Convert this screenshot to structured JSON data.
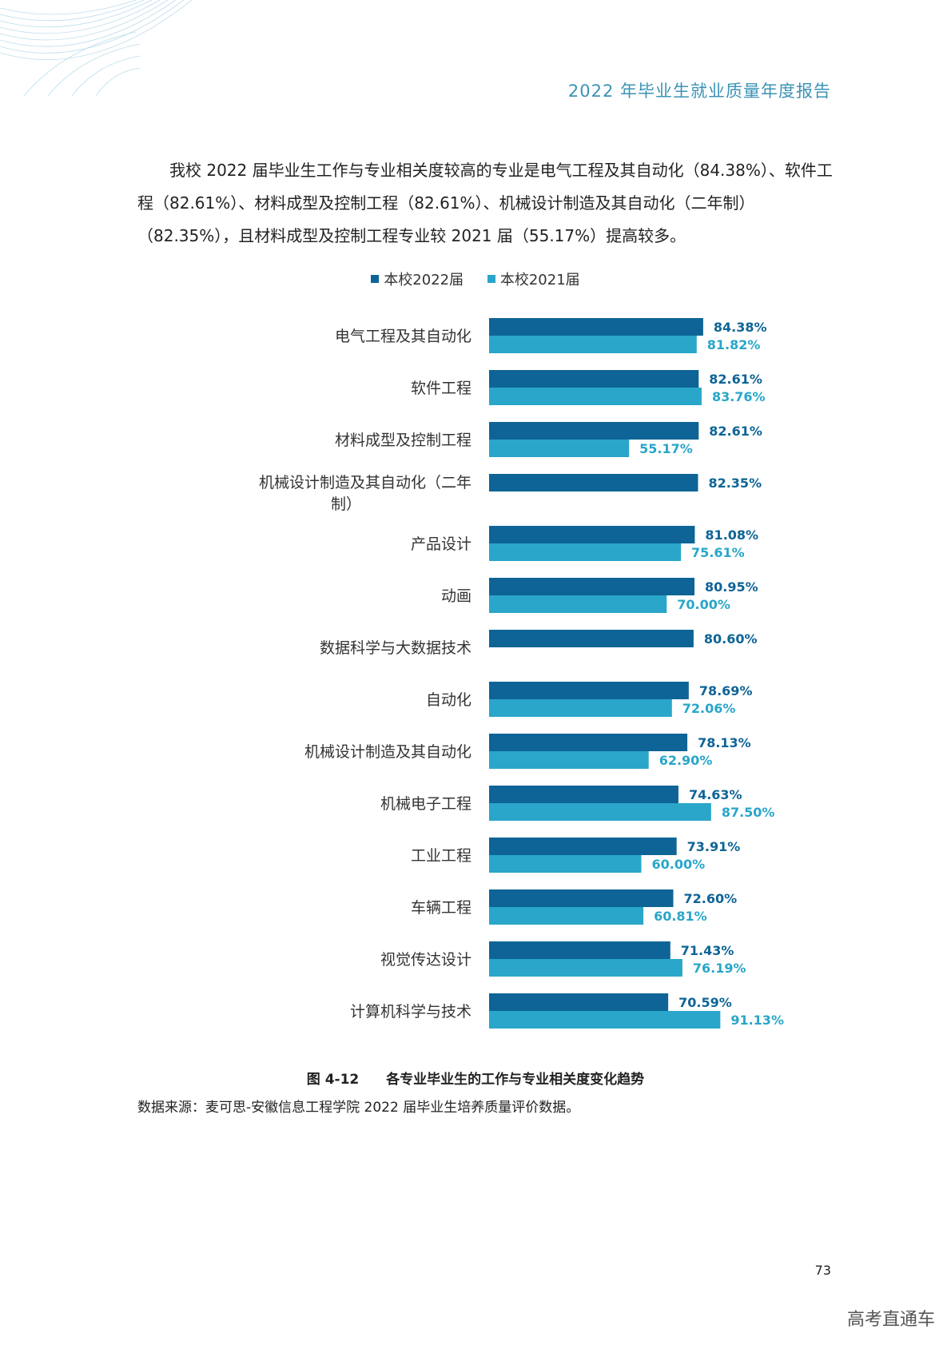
{
  "header": {
    "title": "2022 年毕业生就业质量年度报告"
  },
  "paragraph": "我校 2022 届毕业生工作与专业相关度较高的专业是电气工程及其自动化（84.38%）、软件工程（82.61%）、材料成型及控制工程（82.61%）、机械设计制造及其自动化（二年制）（82.35%），且材料成型及控制工程专业较 2021 届（55.17%）提高较多。",
  "colors": {
    "series2022": "#0e6496",
    "series2021": "#29a6c9",
    "header": "#3b93b5"
  },
  "chart_data": {
    "type": "bar",
    "orientation": "horizontal",
    "title": "",
    "xlabel": "",
    "ylabel": "",
    "value_suffix": "%",
    "legend_position": "top-center",
    "series": [
      {
        "name": "本校2022届",
        "values": [
          84.38,
          82.61,
          82.61,
          82.35,
          81.08,
          80.95,
          80.6,
          78.69,
          78.13,
          74.63,
          73.91,
          72.6,
          71.43,
          70.59
        ]
      },
      {
        "name": "本校2021届",
        "values": [
          81.82,
          83.76,
          55.17,
          null,
          75.61,
          70.0,
          null,
          72.06,
          62.9,
          87.5,
          60.0,
          60.81,
          76.19,
          91.13
        ]
      }
    ],
    "categories": [
      [
        "电气工程及其自动化"
      ],
      [
        "软件工程"
      ],
      [
        "材料成型及控制工程"
      ],
      [
        "机械设计制造及其自动化（二年",
        "制）"
      ],
      [
        "产品设计"
      ],
      [
        "动画"
      ],
      [
        "数据科学与大数据技术"
      ],
      [
        "自动化"
      ],
      [
        "机械设计制造及其自动化"
      ],
      [
        "机械电子工程"
      ],
      [
        "工业工程"
      ],
      [
        "车辆工程"
      ],
      [
        "视觉传达设计"
      ],
      [
        "计算机科学与技术"
      ]
    ]
  },
  "caption": {
    "figure_number": "图 4-12",
    "text": "各专业毕业生的工作与专业相关度变化趋势"
  },
  "source": "数据来源：麦可思-安徽信息工程学院 2022 届毕业生培养质量评价数据。",
  "page_number": "73",
  "watermark": "高考直通车"
}
